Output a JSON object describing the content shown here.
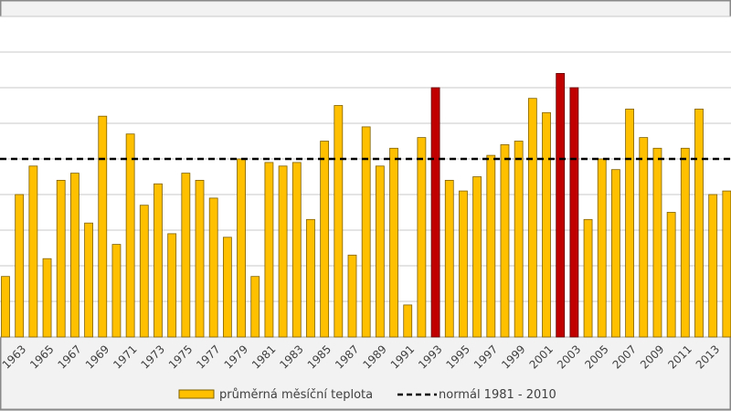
{
  "chart_data": {
    "type": "bar",
    "title": "",
    "xlabel": "",
    "ylabel": "",
    "ylim": [
      0,
      9
    ],
    "grid": true,
    "legend_placement": "bottom",
    "categories": [
      1962,
      1963,
      1964,
      1965,
      1966,
      1967,
      1968,
      1969,
      1970,
      1971,
      1972,
      1973,
      1974,
      1975,
      1976,
      1977,
      1978,
      1979,
      1980,
      1981,
      1982,
      1983,
      1984,
      1985,
      1986,
      1987,
      1988,
      1989,
      1990,
      1991,
      1992,
      1993,
      1994,
      1995,
      1996,
      1997,
      1998,
      1999,
      2000,
      2001,
      2002,
      2003,
      2004,
      2005,
      2006,
      2007,
      2008,
      2009,
      2010,
      2011,
      2012,
      2013,
      2014
    ],
    "tick_labels": [
      "1963",
      "1965",
      "1967",
      "1969",
      "1971",
      "1973",
      "1975",
      "1977",
      "1979",
      "1981",
      "1983",
      "1985",
      "1987",
      "1989",
      "1991",
      "1993",
      "1995",
      "1997",
      "1999",
      "2001",
      "2003",
      "2005",
      "2007",
      "2009",
      "2011",
      "2013"
    ],
    "series": [
      {
        "name": "průměrná měsíční teplota",
        "values": [
          1.7,
          4.0,
          4.8,
          2.2,
          4.4,
          4.6,
          3.2,
          6.2,
          2.6,
          5.7,
          3.7,
          4.3,
          2.9,
          4.6,
          4.4,
          3.9,
          2.8,
          5.0,
          1.7,
          4.9,
          4.8,
          4.9,
          3.3,
          5.5,
          6.5,
          2.3,
          5.9,
          4.8,
          5.3,
          0.9,
          5.6,
          7.0,
          4.4,
          4.1,
          4.5,
          5.1,
          5.4,
          5.5,
          6.7,
          6.3,
          7.4,
          7.0,
          3.3,
          5.0,
          4.7,
          6.4,
          5.6,
          5.3,
          3.5,
          5.3,
          6.4,
          4.0,
          4.1
        ],
        "color": "#ffc000",
        "highlight_color": "#c00000",
        "highlighted": [
          1993,
          2002,
          2003
        ]
      }
    ],
    "reference_line": {
      "name": "normál 1981 - 2010",
      "value": 5.0,
      "color": "#000000",
      "style": "dashed"
    }
  }
}
